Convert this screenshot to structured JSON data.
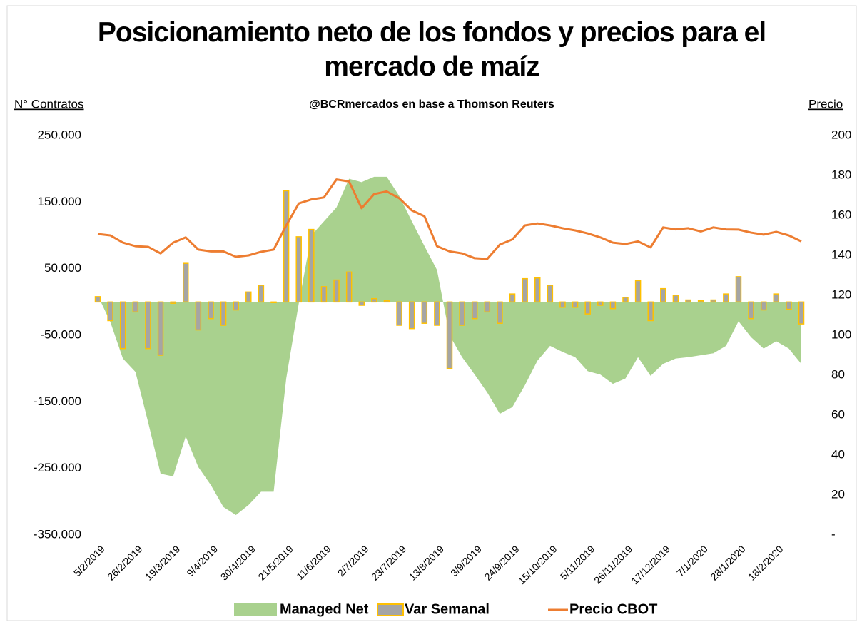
{
  "chart_data": {
    "type": "combo",
    "title": "Posicionamiento neto de los fondos y precios para el mercado de maíz",
    "subtitle": "@BCRmercados en base a Thomson Reuters",
    "y_label": "N° Contratos",
    "y2_label": "Precio",
    "categories": [
      "5/2/2019",
      null,
      null,
      "26/2/2019",
      null,
      null,
      "19/3/2019",
      null,
      null,
      "9/4/2019",
      null,
      null,
      "30/4/2019",
      null,
      null,
      "21/5/2019",
      null,
      null,
      "11/6/2019",
      null,
      null,
      "2/7/2019",
      null,
      null,
      "23/7/2019",
      null,
      null,
      "13/8/2019",
      null,
      null,
      "3/9/2019",
      null,
      null,
      "24/9/2019",
      null,
      null,
      "15/10/2019",
      null,
      null,
      "5/11/2019",
      null,
      null,
      "26/11/2019",
      null,
      null,
      "17/12/2019",
      null,
      null,
      "7/1/2020",
      null,
      null,
      "28/1/2020",
      null,
      null,
      "18/2/2020",
      null,
      null
    ],
    "ylim": [
      -350000,
      250000
    ],
    "yticks": [
      {
        "value": -350000,
        "label": "-350.000"
      },
      {
        "value": -250000,
        "label": "-250.000"
      },
      {
        "value": -150000,
        "label": "-150.000"
      },
      {
        "value": -50000,
        "label": "-50.000"
      },
      {
        "value": 50000,
        "label": "50.000"
      },
      {
        "value": 150000,
        "label": "150.000"
      },
      {
        "value": 250000,
        "label": "250.000"
      }
    ],
    "y2lim": [
      0,
      200
    ],
    "y2ticks": [
      {
        "value": 0,
        "label": "-"
      },
      20,
      40,
      60,
      80,
      100,
      120,
      140,
      160,
      180,
      200
    ],
    "grid": false,
    "legend": "bottom",
    "series": [
      {
        "name": "Managed Net",
        "type": "area",
        "color": "#a9d18e",
        "values": [
          10000,
          -30000,
          -85000,
          -105000,
          -180000,
          -258000,
          -262000,
          -202000,
          -248000,
          -275000,
          -308000,
          -320000,
          -305000,
          -285000,
          -285000,
          -115000,
          -2000,
          100000,
          121000,
          142000,
          185000,
          180000,
          188000,
          188000,
          159000,
          121000,
          84000,
          48000,
          -50000,
          -83000,
          -109000,
          -136000,
          -168000,
          -158000,
          -125000,
          -88000,
          -66000,
          -75000,
          -83000,
          -104000,
          -109000,
          -123000,
          -115000,
          -83000,
          -111000,
          -93000,
          -85000,
          -83000,
          -80000,
          -77000,
          -66000,
          -29000,
          -53000,
          -70000,
          -59000,
          -70000,
          -93000
        ]
      },
      {
        "name": "Var Semanal",
        "type": "bar",
        "color": "#a5a5a5",
        "edge": "#ffc000",
        "values": [
          8000,
          -28000,
          -70000,
          -15000,
          -70000,
          -80000,
          -2000,
          58000,
          -42000,
          -25000,
          -35000,
          -12000,
          15000,
          25000,
          -1000,
          167000,
          98000,
          109000,
          23000,
          33000,
          45000,
          -5000,
          5000,
          2000,
          -35000,
          -40000,
          -32000,
          -35000,
          -100000,
          -35000,
          -25000,
          -15000,
          -32000,
          12000,
          35000,
          36000,
          25000,
          -8000,
          -8000,
          -18000,
          -5000,
          -10000,
          7000,
          32000,
          -28000,
          20000,
          10000,
          3000,
          2000,
          3000,
          12000,
          38000,
          -25000,
          -12000,
          12000,
          -11000,
          -33000
        ]
      },
      {
        "name": "Precio CBOT",
        "type": "line",
        "axis": "y2",
        "color": "#ed7d31",
        "values": [
          150.7,
          150,
          146.4,
          144.6,
          144.3,
          141,
          146.4,
          149,
          142.9,
          142,
          142,
          139.3,
          140,
          141.8,
          142.9,
          155,
          166,
          168,
          169,
          178,
          177,
          163.6,
          170.7,
          172,
          168.6,
          162.5,
          159.6,
          144.6,
          142,
          141,
          138.6,
          138.2,
          145.4,
          148,
          155,
          156,
          155,
          153.6,
          152.5,
          151,
          149,
          146.4,
          145.7,
          147,
          144,
          154,
          153,
          153.6,
          152,
          154,
          153,
          152.9,
          151.4,
          150.4,
          151.8,
          150,
          147
        ]
      }
    ]
  }
}
